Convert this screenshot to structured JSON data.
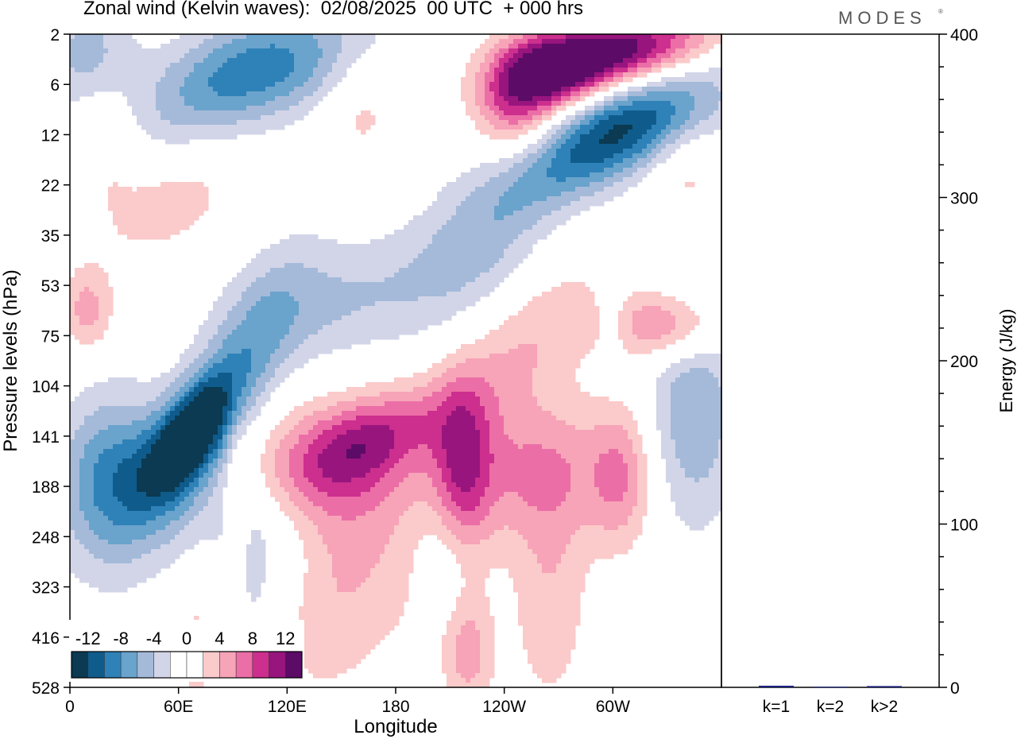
{
  "header": {
    "title": "Zonal wind (Kelvin waves):  02/08/2025  00 UTC  + 000 hrs",
    "brand": "MODES",
    "brand_mark": "®"
  },
  "colors": {
    "scale": [
      "#0b3a52",
      "#0f5c8c",
      "#2e82b8",
      "#6aa3cc",
      "#a5bad9",
      "#d2d5e8",
      "#ffffff",
      "#ffffff",
      "#fbcaca",
      "#f7a3b8",
      "#ec6ea6",
      "#cc2f8e",
      "#98157e",
      "#5c0b66"
    ],
    "background": "#ffffff",
    "frame": "#000000",
    "bar": "#1a237e"
  },
  "chart_data": [
    {
      "type": "heatmap",
      "title": "Zonal wind (Kelvin waves):  02/08/2025  00 UTC  + 000 hrs",
      "xlabel": "Longitude",
      "ylabel": "Pressure levels (hPa)",
      "x_ticks": [
        "0",
        "60E",
        "120E",
        "180",
        "120W",
        "60W"
      ],
      "x_tick_values": [
        0,
        60,
        120,
        180,
        240,
        300
      ],
      "xlim": [
        0,
        360
      ],
      "y_ticks": [
        "2",
        "6",
        "12",
        "22",
        "35",
        "53",
        "75",
        "104",
        "141",
        "188",
        "248",
        "323",
        "416",
        "528"
      ],
      "y_scale": "level index (top = 2 hPa, bottom = 528 hPa)",
      "colorbar": {
        "labels": [
          "-12",
          "-8",
          "-4",
          "0",
          "4",
          "8",
          "12"
        ],
        "levels": [
          -14,
          -12,
          -10,
          -8,
          -6,
          -4,
          -2,
          0,
          2,
          4,
          6,
          8,
          10,
          12,
          14
        ],
        "placement": "bottom-left"
      },
      "features": [
        {
          "name": "strong easterly core",
          "value": -13,
          "lon": [
            52,
            85
          ],
          "hpa": [
            104,
            160
          ]
        },
        {
          "name": "strong westerly core (upper stratosphere)",
          "value": 13,
          "lon": [
            275,
            325
          ],
          "hpa": [
            2,
            6
          ]
        },
        {
          "name": "westerly band (upper troposphere)",
          "value": 6,
          "lon": [
            110,
            300
          ],
          "hpa": [
            104,
            188
          ]
        },
        {
          "name": "easterly band (lower stratosphere)",
          "value": -4,
          "lon": [
            90,
            240
          ],
          "hpa": [
            22,
            104
          ]
        },
        {
          "name": "easterly band (upper stratosphere)",
          "value": -6,
          "lon": [
            270,
            360
          ],
          "hpa": [
            6,
            22
          ]
        }
      ]
    },
    {
      "type": "bar",
      "categories": [
        "k=1",
        "k=2",
        "k>2"
      ],
      "values": [
        1.0,
        0.4,
        0.8
      ],
      "ylabel": "Energy (J/kg)",
      "ylim": [
        0,
        400
      ],
      "y_ticks": [
        0,
        100,
        200,
        300,
        400
      ]
    }
  ]
}
